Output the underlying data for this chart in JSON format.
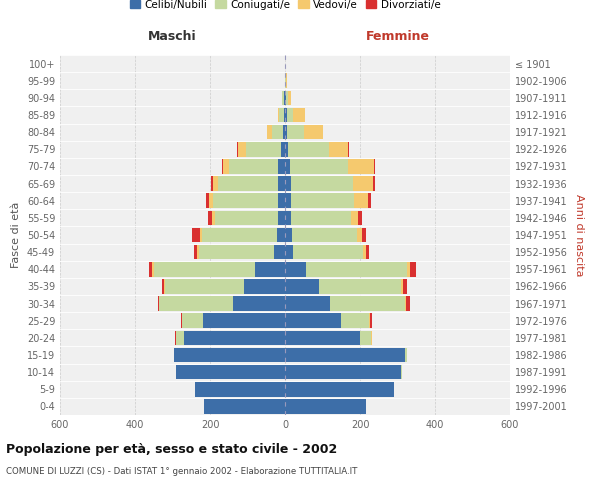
{
  "age_groups": [
    "0-4",
    "5-9",
    "10-14",
    "15-19",
    "20-24",
    "25-29",
    "30-34",
    "35-39",
    "40-44",
    "45-49",
    "50-54",
    "55-59",
    "60-64",
    "65-69",
    "70-74",
    "75-79",
    "80-84",
    "85-89",
    "90-94",
    "95-99",
    "100+"
  ],
  "birth_years": [
    "1997-2001",
    "1992-1996",
    "1987-1991",
    "1982-1986",
    "1977-1981",
    "1972-1976",
    "1967-1971",
    "1962-1966",
    "1957-1961",
    "1952-1956",
    "1947-1951",
    "1942-1946",
    "1937-1941",
    "1932-1936",
    "1927-1931",
    "1922-1926",
    "1917-1921",
    "1912-1916",
    "1907-1911",
    "1902-1906",
    "≤ 1901"
  ],
  "maschi": {
    "celibi": [
      215,
      240,
      290,
      295,
      270,
      220,
      140,
      110,
      80,
      30,
      22,
      18,
      18,
      20,
      20,
      10,
      5,
      3,
      2,
      0,
      0
    ],
    "coniugati": [
      0,
      0,
      0,
      2,
      20,
      55,
      195,
      210,
      270,
      200,
      200,
      170,
      175,
      160,
      130,
      95,
      30,
      12,
      5,
      1,
      0
    ],
    "vedovi": [
      0,
      0,
      0,
      0,
      1,
      1,
      2,
      3,
      5,
      5,
      5,
      8,
      10,
      12,
      15,
      20,
      12,
      4,
      1,
      0,
      0
    ],
    "divorziati": [
      0,
      0,
      0,
      0,
      2,
      2,
      3,
      5,
      8,
      8,
      20,
      10,
      8,
      5,
      3,
      2,
      1,
      0,
      0,
      0,
      0
    ]
  },
  "femmine": {
    "nubili": [
      215,
      290,
      310,
      320,
      200,
      150,
      120,
      90,
      55,
      22,
      18,
      15,
      15,
      15,
      12,
      8,
      5,
      4,
      2,
      1,
      0
    ],
    "coniugate": [
      0,
      0,
      2,
      5,
      30,
      75,
      200,
      220,
      270,
      185,
      175,
      160,
      170,
      165,
      155,
      110,
      45,
      18,
      5,
      1,
      0
    ],
    "vedove": [
      0,
      0,
      0,
      0,
      1,
      2,
      3,
      5,
      8,
      8,
      12,
      20,
      35,
      55,
      70,
      50,
      50,
      30,
      10,
      2,
      0
    ],
    "divorziate": [
      0,
      0,
      0,
      0,
      2,
      5,
      10,
      10,
      15,
      10,
      10,
      10,
      8,
      5,
      3,
      2,
      1,
      1,
      0,
      0,
      0
    ]
  },
  "colors": {
    "celibi": "#3d6ea8",
    "coniugati": "#c5d9a0",
    "vedovi": "#f5c96e",
    "divorziati": "#d93030"
  },
  "xlim": 600,
  "title1": "Popolazione per età, sesso e stato civile - 2002",
  "title2": "COMUNE DI LUZZI (CS) - Dati ISTAT 1° gennaio 2002 - Elaborazione TUTTITALIA.IT",
  "ylabel_left": "Fasce di età",
  "ylabel_right": "Anni di nascita",
  "xlabel_left": "Maschi",
  "xlabel_right": "Femmine",
  "legend_labels": [
    "Celibi/Nubili",
    "Coniugati/e",
    "Vedovi/e",
    "Divorziati/e"
  ],
  "background_color": "#ffffff",
  "plot_bg_color": "#f0f0f0",
  "grid_color": "#cccccc"
}
